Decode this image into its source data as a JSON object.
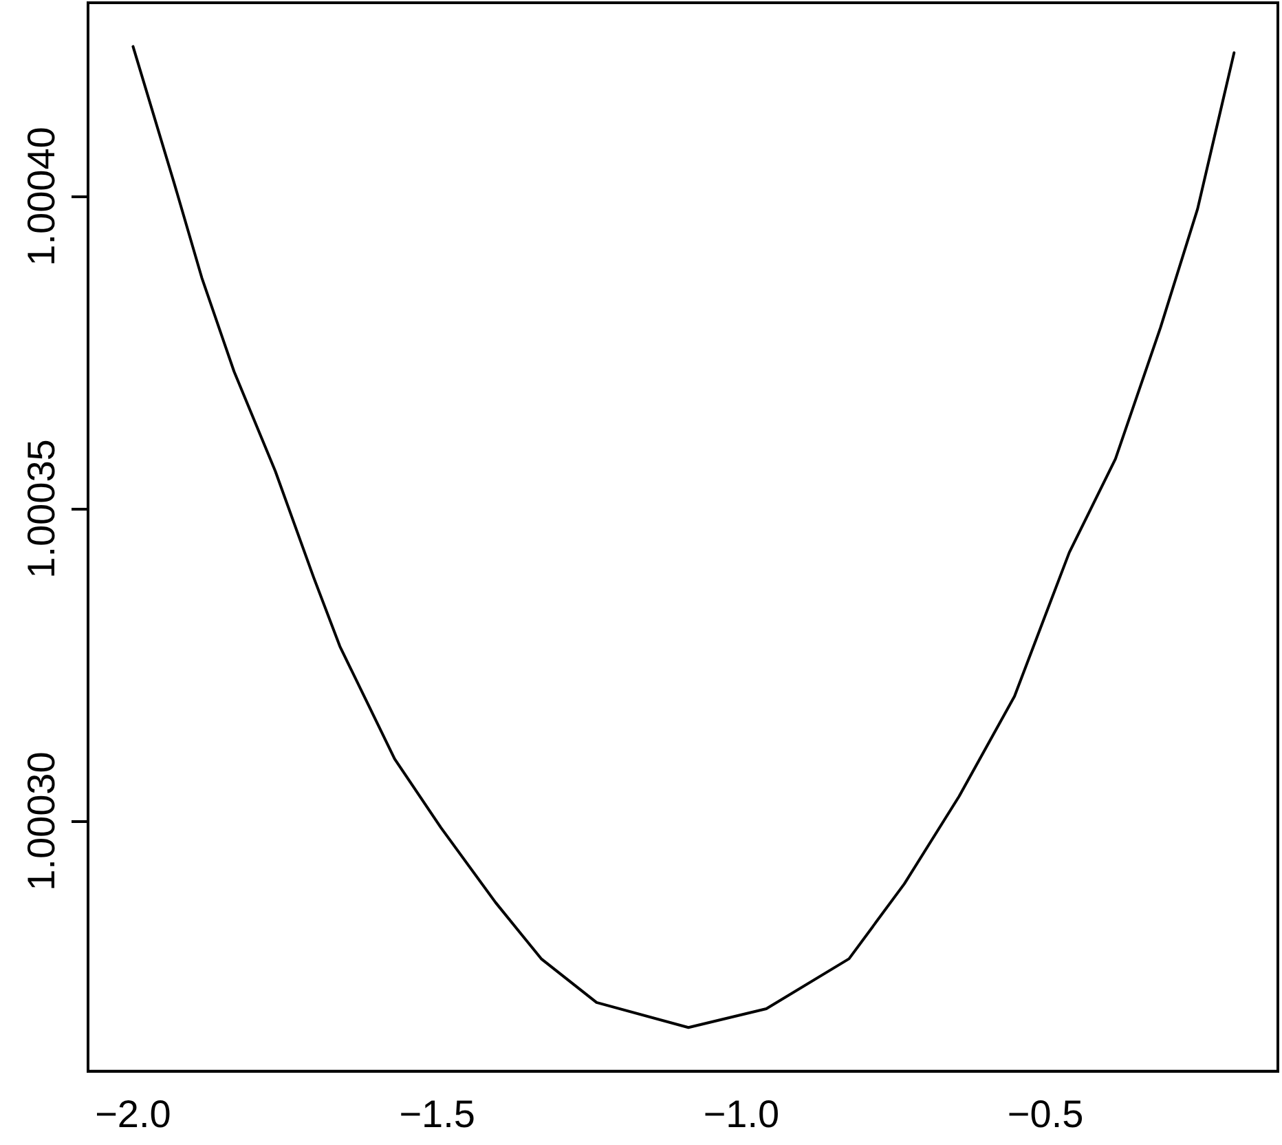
{
  "chart_data": {
    "type": "line",
    "x": [
      -2.0,
      -1.932,
      -1.887,
      -1.834,
      -1.766,
      -1.703,
      -1.66,
      -1.57,
      -1.494,
      -1.404,
      -1.329,
      -1.238,
      -1.087,
      -0.959,
      -0.823,
      -0.732,
      -0.642,
      -0.551,
      -0.461,
      -0.385,
      -0.311,
      -0.25,
      -0.19
    ],
    "series": [
      {
        "color": "#000000",
        "values": [
          1.000424,
          1.000402,
          1.000387,
          1.000372,
          1.000356,
          1.000339,
          1.000328,
          1.00031,
          1.000299,
          1.000287,
          1.000278,
          1.000271,
          1.000267,
          1.00027,
          1.000278,
          1.00029,
          1.000304,
          1.00032,
          1.000343,
          1.000358,
          1.000379,
          1.000398,
          1.000423
        ]
      }
    ],
    "xlim": [
      -2.074,
      -0.118
    ],
    "ylim": [
      1.00026,
      1.000431
    ],
    "xticks": [
      {
        "value": -2.0,
        "label": "−2.0"
      },
      {
        "value": -1.5,
        "label": "−1.5"
      },
      {
        "value": -1.0,
        "label": "−1.0"
      },
      {
        "value": -0.5,
        "label": "−0.5"
      }
    ],
    "yticks": [
      {
        "value": 1.0003,
        "label": "1.00030"
      },
      {
        "value": 1.00035,
        "label": "1.00035"
      },
      {
        "value": 1.0004,
        "label": "1.00040"
      }
    ],
    "grid": false,
    "legend": false,
    "marker": "none",
    "line_style": "solid"
  }
}
